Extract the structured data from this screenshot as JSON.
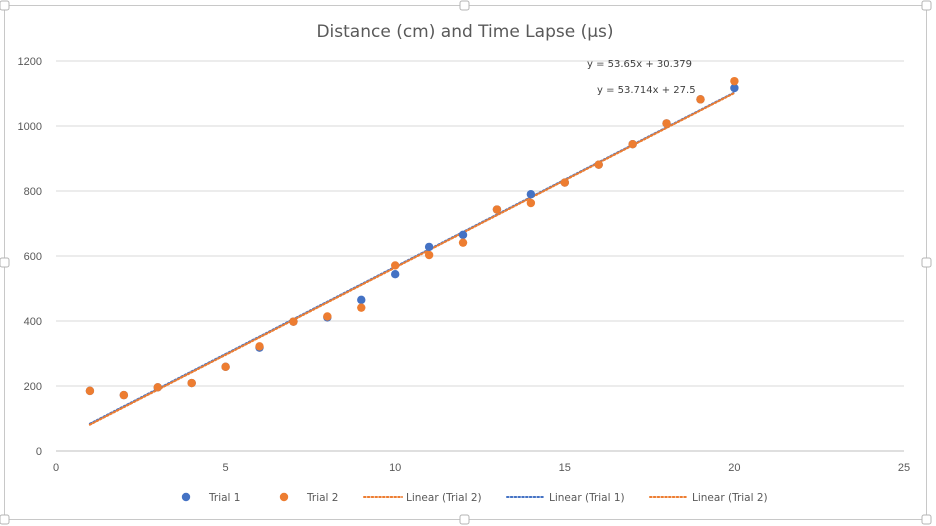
{
  "colors": {
    "trial1": "#4472C4",
    "trial2": "#ED7D31",
    "grid": "#d9d9d9",
    "axis": "#bfbfbf",
    "frame": "#c8c8c8"
  },
  "chart_data": {
    "type": "scatter",
    "title": "Distance (cm) and Time Lapse (µs)",
    "xlabel": "",
    "ylabel": "",
    "xlim": [
      0,
      25
    ],
    "ylim": [
      0,
      1200
    ],
    "x_ticks": [
      "0",
      "5",
      "10",
      "15",
      "20",
      "25"
    ],
    "y_ticks": [
      "0",
      "200",
      "400",
      "600",
      "800",
      "1000",
      "1200"
    ],
    "grid": "horizontal",
    "legend_position": "bottom",
    "series": [
      {
        "name": "Trial 1",
        "color": "#4472C4",
        "points": [
          [
            1,
            185
          ],
          [
            2,
            172
          ],
          [
            3,
            196
          ],
          [
            4,
            209
          ],
          [
            5,
            259
          ],
          [
            6,
            318
          ],
          [
            7,
            398
          ],
          [
            8,
            411
          ],
          [
            9,
            465
          ],
          [
            10,
            544
          ],
          [
            11,
            628
          ],
          [
            12,
            665
          ],
          [
            13,
            743
          ],
          [
            14,
            790
          ],
          [
            15,
            826
          ],
          [
            16,
            881
          ],
          [
            17,
            944
          ],
          [
            18,
            1008
          ],
          [
            19,
            1082
          ],
          [
            20,
            1117
          ]
        ]
      },
      {
        "name": "Trial 2",
        "color": "#ED7D31",
        "points": [
          [
            1,
            185
          ],
          [
            2,
            172
          ],
          [
            3,
            196
          ],
          [
            4,
            209
          ],
          [
            5,
            259
          ],
          [
            6,
            322
          ],
          [
            7,
            398
          ],
          [
            8,
            414
          ],
          [
            9,
            441
          ],
          [
            10,
            571
          ],
          [
            11,
            603
          ],
          [
            12,
            641
          ],
          [
            13,
            743
          ],
          [
            14,
            763
          ],
          [
            15,
            826
          ],
          [
            16,
            881
          ],
          [
            17,
            944
          ],
          [
            18,
            1008
          ],
          [
            19,
            1082
          ],
          [
            20,
            1138
          ]
        ]
      }
    ],
    "trendlines": [
      {
        "name": "Linear (Trial 2)",
        "color": "#ED7D31",
        "slope": 53.714,
        "intercept": 27.5,
        "x_range": [
          1,
          20
        ]
      },
      {
        "name": "Linear (Trial 1)",
        "color": "#4472C4",
        "slope": 53.65,
        "intercept": 30.379,
        "x_range": [
          1,
          20
        ]
      },
      {
        "name": "Linear (Trial 2)",
        "color": "#ED7D31",
        "slope": 53.714,
        "intercept": 27.5,
        "x_range": [
          1,
          20
        ]
      }
    ],
    "equations": [
      "y = 53.65x + 30.379",
      "y = 53.714x + 27.5"
    ],
    "legend": [
      {
        "label": "Trial 1",
        "kind": "marker",
        "color": "#4472C4"
      },
      {
        "label": "Trial 2",
        "kind": "marker",
        "color": "#ED7D31"
      },
      {
        "label": "Linear (Trial 2)",
        "kind": "dotted",
        "color": "#ED7D31"
      },
      {
        "label": "Linear (Trial 1)",
        "kind": "dotted",
        "color": "#4472C4"
      },
      {
        "label": "Linear (Trial 2)",
        "kind": "dotted",
        "color": "#ED7D31"
      }
    ]
  }
}
